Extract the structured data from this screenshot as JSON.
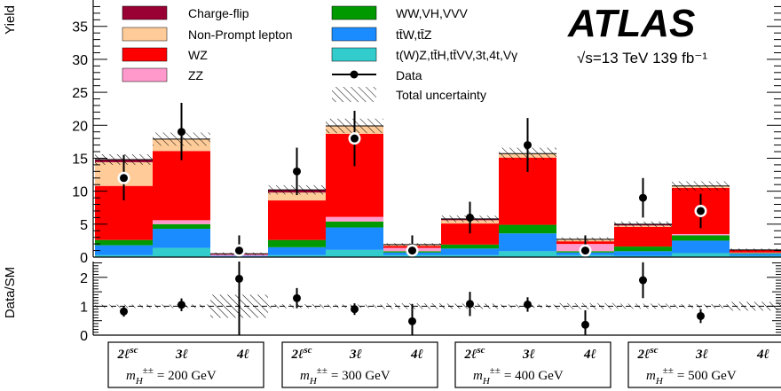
{
  "chart_data": {
    "type": "bar",
    "stacked": true,
    "experiment": "ATLAS",
    "energy_label": "√s=13 TeV 139 fb⁻¹",
    "ylabel_top": "Yield",
    "ylabel_bottom": "Data/SM",
    "ylim_top": [
      0,
      39
    ],
    "ylim_ratio": [
      0,
      2.5
    ],
    "yticks_top": [
      0,
      5,
      10,
      15,
      20,
      25,
      30,
      35
    ],
    "yticks_ratio": [
      0,
      1,
      2
    ],
    "categories": [
      "2ℓsc 200",
      "3ℓ 200",
      "4ℓ 200",
      "2ℓsc 300",
      "3ℓ 300",
      "4ℓ 300",
      "2ℓsc 400",
      "3ℓ 400",
      "4ℓ 400",
      "2ℓsc 500",
      "3ℓ 500",
      "4ℓ 500"
    ],
    "groups": [
      {
        "channels": [
          "2ℓsc",
          "3ℓ",
          "4ℓ"
        ],
        "mass_label": "= 200 GeV"
      },
      {
        "channels": [
          "2ℓsc",
          "3ℓ",
          "4ℓ"
        ],
        "mass_label": "= 300 GeV"
      },
      {
        "channels": [
          "2ℓsc",
          "3ℓ",
          "4ℓ"
        ],
        "mass_label": "= 400 GeV"
      },
      {
        "channels": [
          "2ℓsc",
          "3ℓ",
          "4ℓ"
        ],
        "mass_label": "= 500 GeV"
      }
    ],
    "mass_symbol": "m",
    "mass_sub": "H",
    "mass_sup": "±±",
    "series": [
      {
        "name": "t(W)Z,tt̄H,tt̄VV,3t,4t,Vγ",
        "color": "#33cccc",
        "values": [
          0.3,
          1.4,
          0.1,
          0.3,
          1.1,
          0.3,
          0.3,
          0.9,
          0.3,
          0.2,
          0.6,
          0.2
        ]
      },
      {
        "name": "tt̄W,tt̄Z",
        "color": "#1a8cff",
        "values": [
          1.5,
          2.9,
          0.1,
          1.2,
          3.4,
          0.4,
          1.0,
          2.7,
          0.4,
          0.7,
          1.9,
          0.3
        ]
      },
      {
        "name": "WW,VH,VVV",
        "color": "#009900",
        "values": [
          0.8,
          0.7,
          0.0,
          1.1,
          0.9,
          0.2,
          0.6,
          1.3,
          0.2,
          0.7,
          0.8,
          0.1
        ]
      },
      {
        "name": "ZZ",
        "color": "#ff99cc",
        "values": [
          0.0,
          0.6,
          0.2,
          0.0,
          0.7,
          0.5,
          0.0,
          0.0,
          1.1,
          0.0,
          0.2,
          0.1
        ]
      },
      {
        "name": "WZ",
        "color": "#ff0000",
        "values": [
          8.2,
          10.5,
          0.1,
          6.0,
          12.6,
          0.3,
          3.2,
          10.2,
          0.4,
          3.0,
          7.0,
          0.4
        ]
      },
      {
        "name": "Non-Prompt lepton",
        "color": "#ffcc99",
        "values": [
          3.6,
          1.8,
          0.0,
          1.2,
          1.2,
          0.2,
          0.5,
          0.6,
          0.3,
          0.2,
          0.3,
          0.0
        ]
      },
      {
        "name": "Charge-flip",
        "color": "#990033",
        "values": [
          0.4,
          0.0,
          0.0,
          0.4,
          0.0,
          0.0,
          0.2,
          0.0,
          0.0,
          0.2,
          0.0,
          0.0
        ]
      }
    ],
    "uncertainty": [
      0.8,
      1.0,
      0.2,
      0.7,
      1.1,
      0.2,
      0.5,
      0.9,
      0.3,
      0.4,
      0.7,
      0.2
    ],
    "data": {
      "name": "Data",
      "values": [
        12,
        19,
        1,
        13,
        18,
        1,
        6,
        17,
        1,
        9,
        7,
        0
      ],
      "err_low": [
        3.4,
        4.3,
        1.0,
        3.6,
        4.2,
        1.0,
        2.4,
        4.1,
        1.0,
        3.0,
        2.6,
        0
      ],
      "err_high": [
        3.5,
        4.4,
        2.3,
        3.6,
        4.2,
        2.3,
        2.4,
        4.1,
        2.3,
        3.0,
        2.6,
        0
      ],
      "open_markers": [
        true,
        false,
        true,
        false,
        true,
        true,
        false,
        false,
        true,
        false,
        true,
        false
      ]
    },
    "ratio": {
      "values": [
        0.82,
        1.05,
        1.95,
        1.28,
        0.9,
        0.48,
        1.08,
        1.06,
        0.36,
        1.9,
        0.66,
        null
      ],
      "err": [
        0.18,
        0.22,
        3.0,
        0.35,
        0.2,
        0.6,
        0.42,
        0.25,
        0.5,
        0.62,
        0.24,
        0
      ],
      "unc": [
        0.06,
        0.06,
        0.4,
        0.07,
        0.06,
        0.1,
        0.09,
        0.06,
        0.11,
        0.09,
        0.07,
        0.15
      ]
    },
    "legend": {
      "uncertainty_label": "Total uncertainty",
      "data_label": "Data",
      "col1": [
        "Charge-flip",
        "Non-Prompt lepton",
        "WZ",
        "ZZ"
      ],
      "col2": [
        "WW,VH,VVV",
        "tt̄W,tt̄Z",
        "t(W)Z,tt̄H,tt̄VV,3t,4t,Vγ"
      ]
    }
  }
}
